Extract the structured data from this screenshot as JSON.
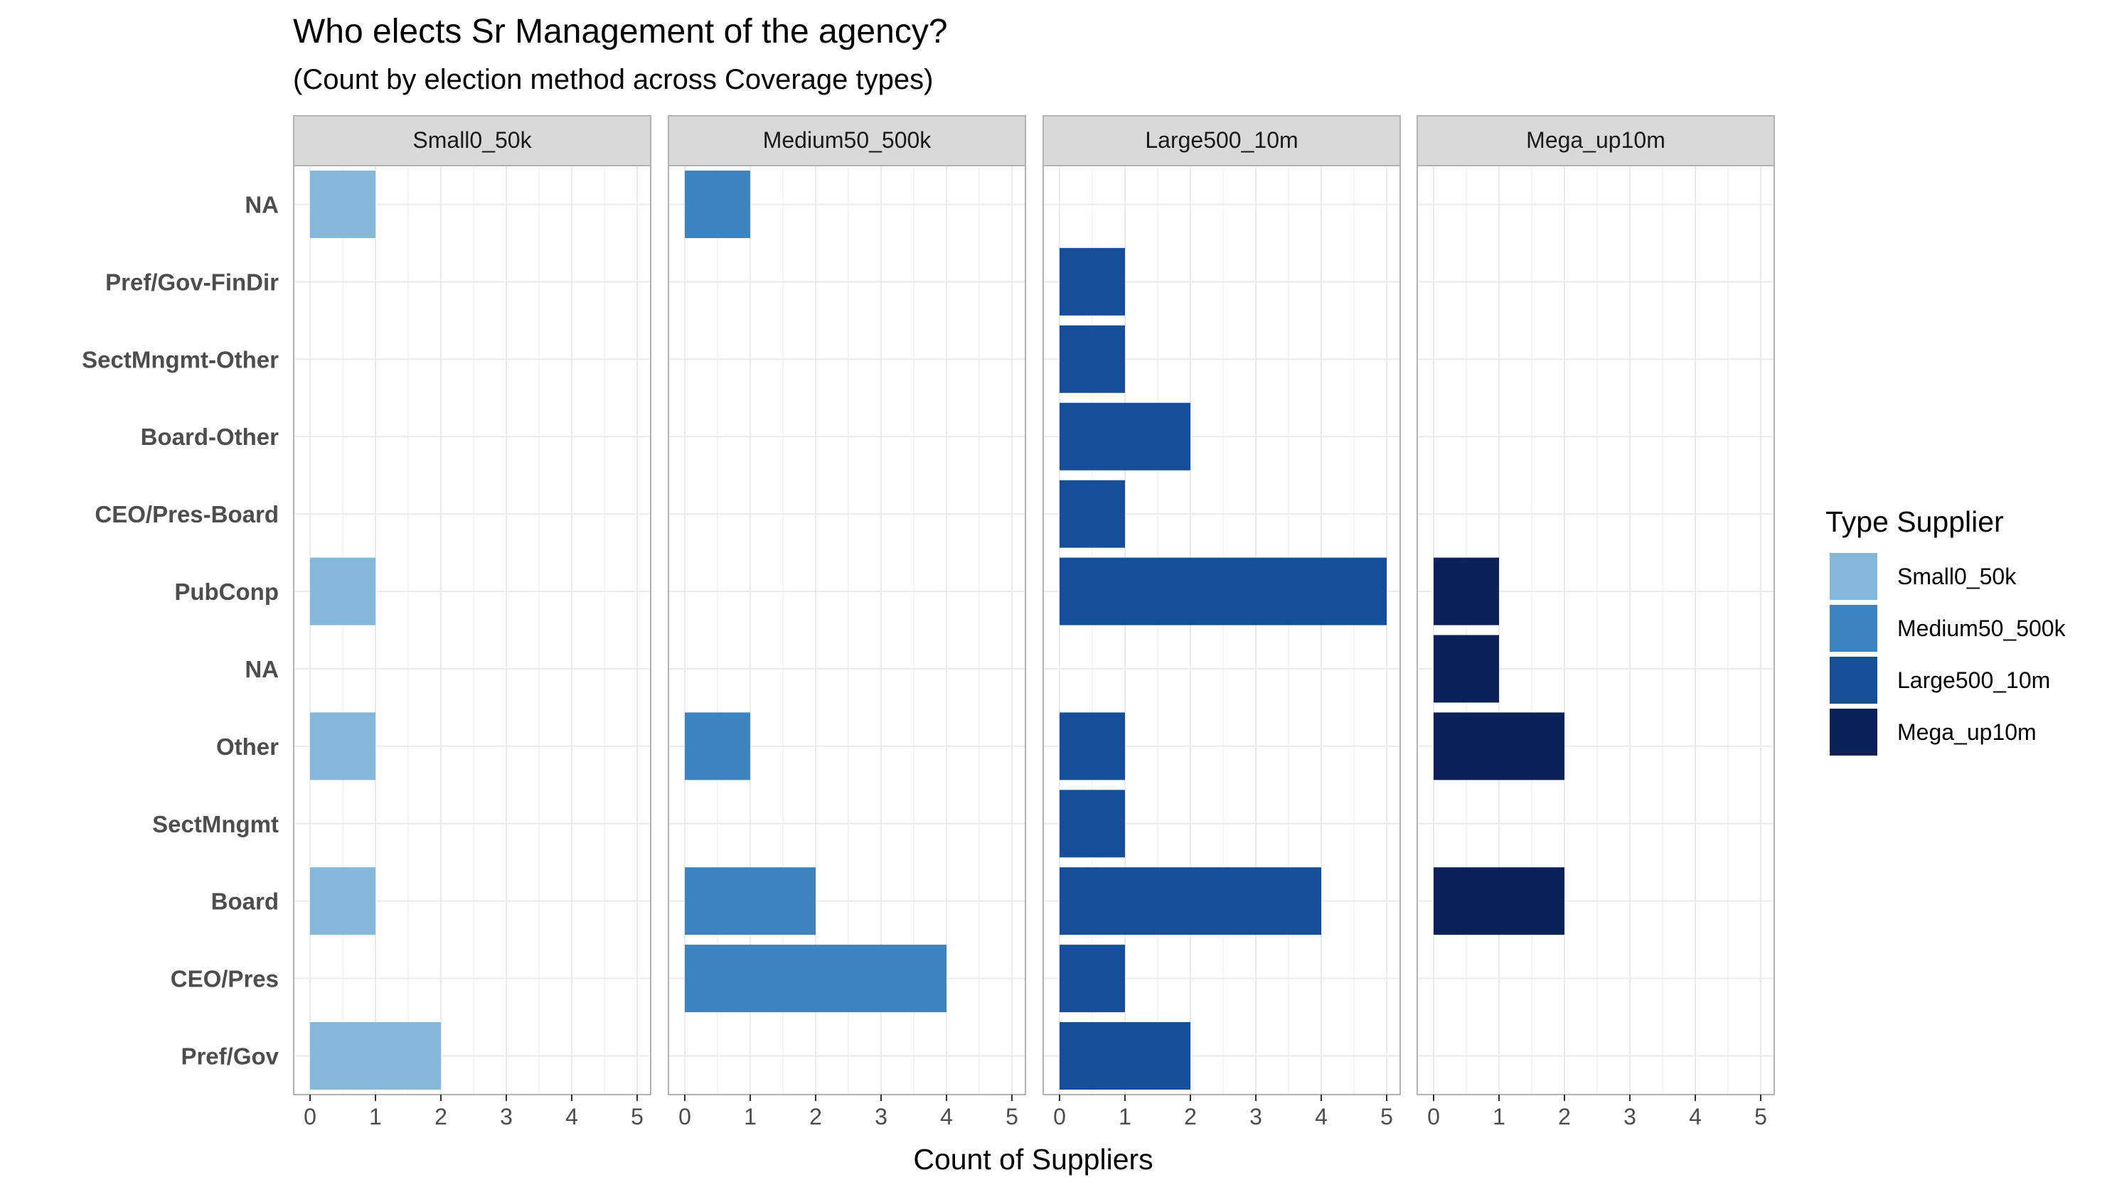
{
  "chart_data": {
    "type": "bar",
    "orientation": "horizontal",
    "title": "Who elects Sr Management of the agency?",
    "subtitle": "(Count by election method across Coverage types)",
    "xlabel": "Count of Suppliers",
    "ylabel": "",
    "xlim": [
      0,
      5
    ],
    "x_ticks": [
      0,
      1,
      2,
      3,
      4,
      5
    ],
    "grid": true,
    "categories": [
      "NA",
      "Pref/Gov-FinDir",
      "SectMngmt-Other",
      "Board-Other",
      "CEO/Pres-Board",
      "PubConp",
      "NA",
      "Other",
      "SectMngmt",
      "Board",
      "CEO/Pres",
      "Pref/Gov"
    ],
    "legend": {
      "title": "Type Supplier",
      "position": "right",
      "items": [
        "Small0_50k",
        "Medium50_500k",
        "Large500_10m",
        "Mega_up10m"
      ]
    },
    "panels": [
      {
        "name": "Small0_50k",
        "color": "#84B8D8",
        "values": [
          1,
          0,
          0,
          0,
          0,
          1,
          0,
          1,
          0,
          1,
          0,
          2
        ]
      },
      {
        "name": "Medium50_500k",
        "color": "#3D83BF",
        "values": [
          1,
          0,
          0,
          0,
          0,
          0,
          0,
          1,
          0,
          2,
          4,
          0
        ]
      },
      {
        "name": "Large500_10m",
        "color": "#164F99",
        "values": [
          0,
          1,
          1,
          2,
          1,
          5,
          0,
          1,
          1,
          4,
          1,
          2
        ]
      },
      {
        "name": "Mega_up10m",
        "color": "#0B2157",
        "values": [
          0,
          0,
          0,
          0,
          0,
          1,
          1,
          2,
          0,
          2,
          0,
          0
        ]
      }
    ]
  }
}
